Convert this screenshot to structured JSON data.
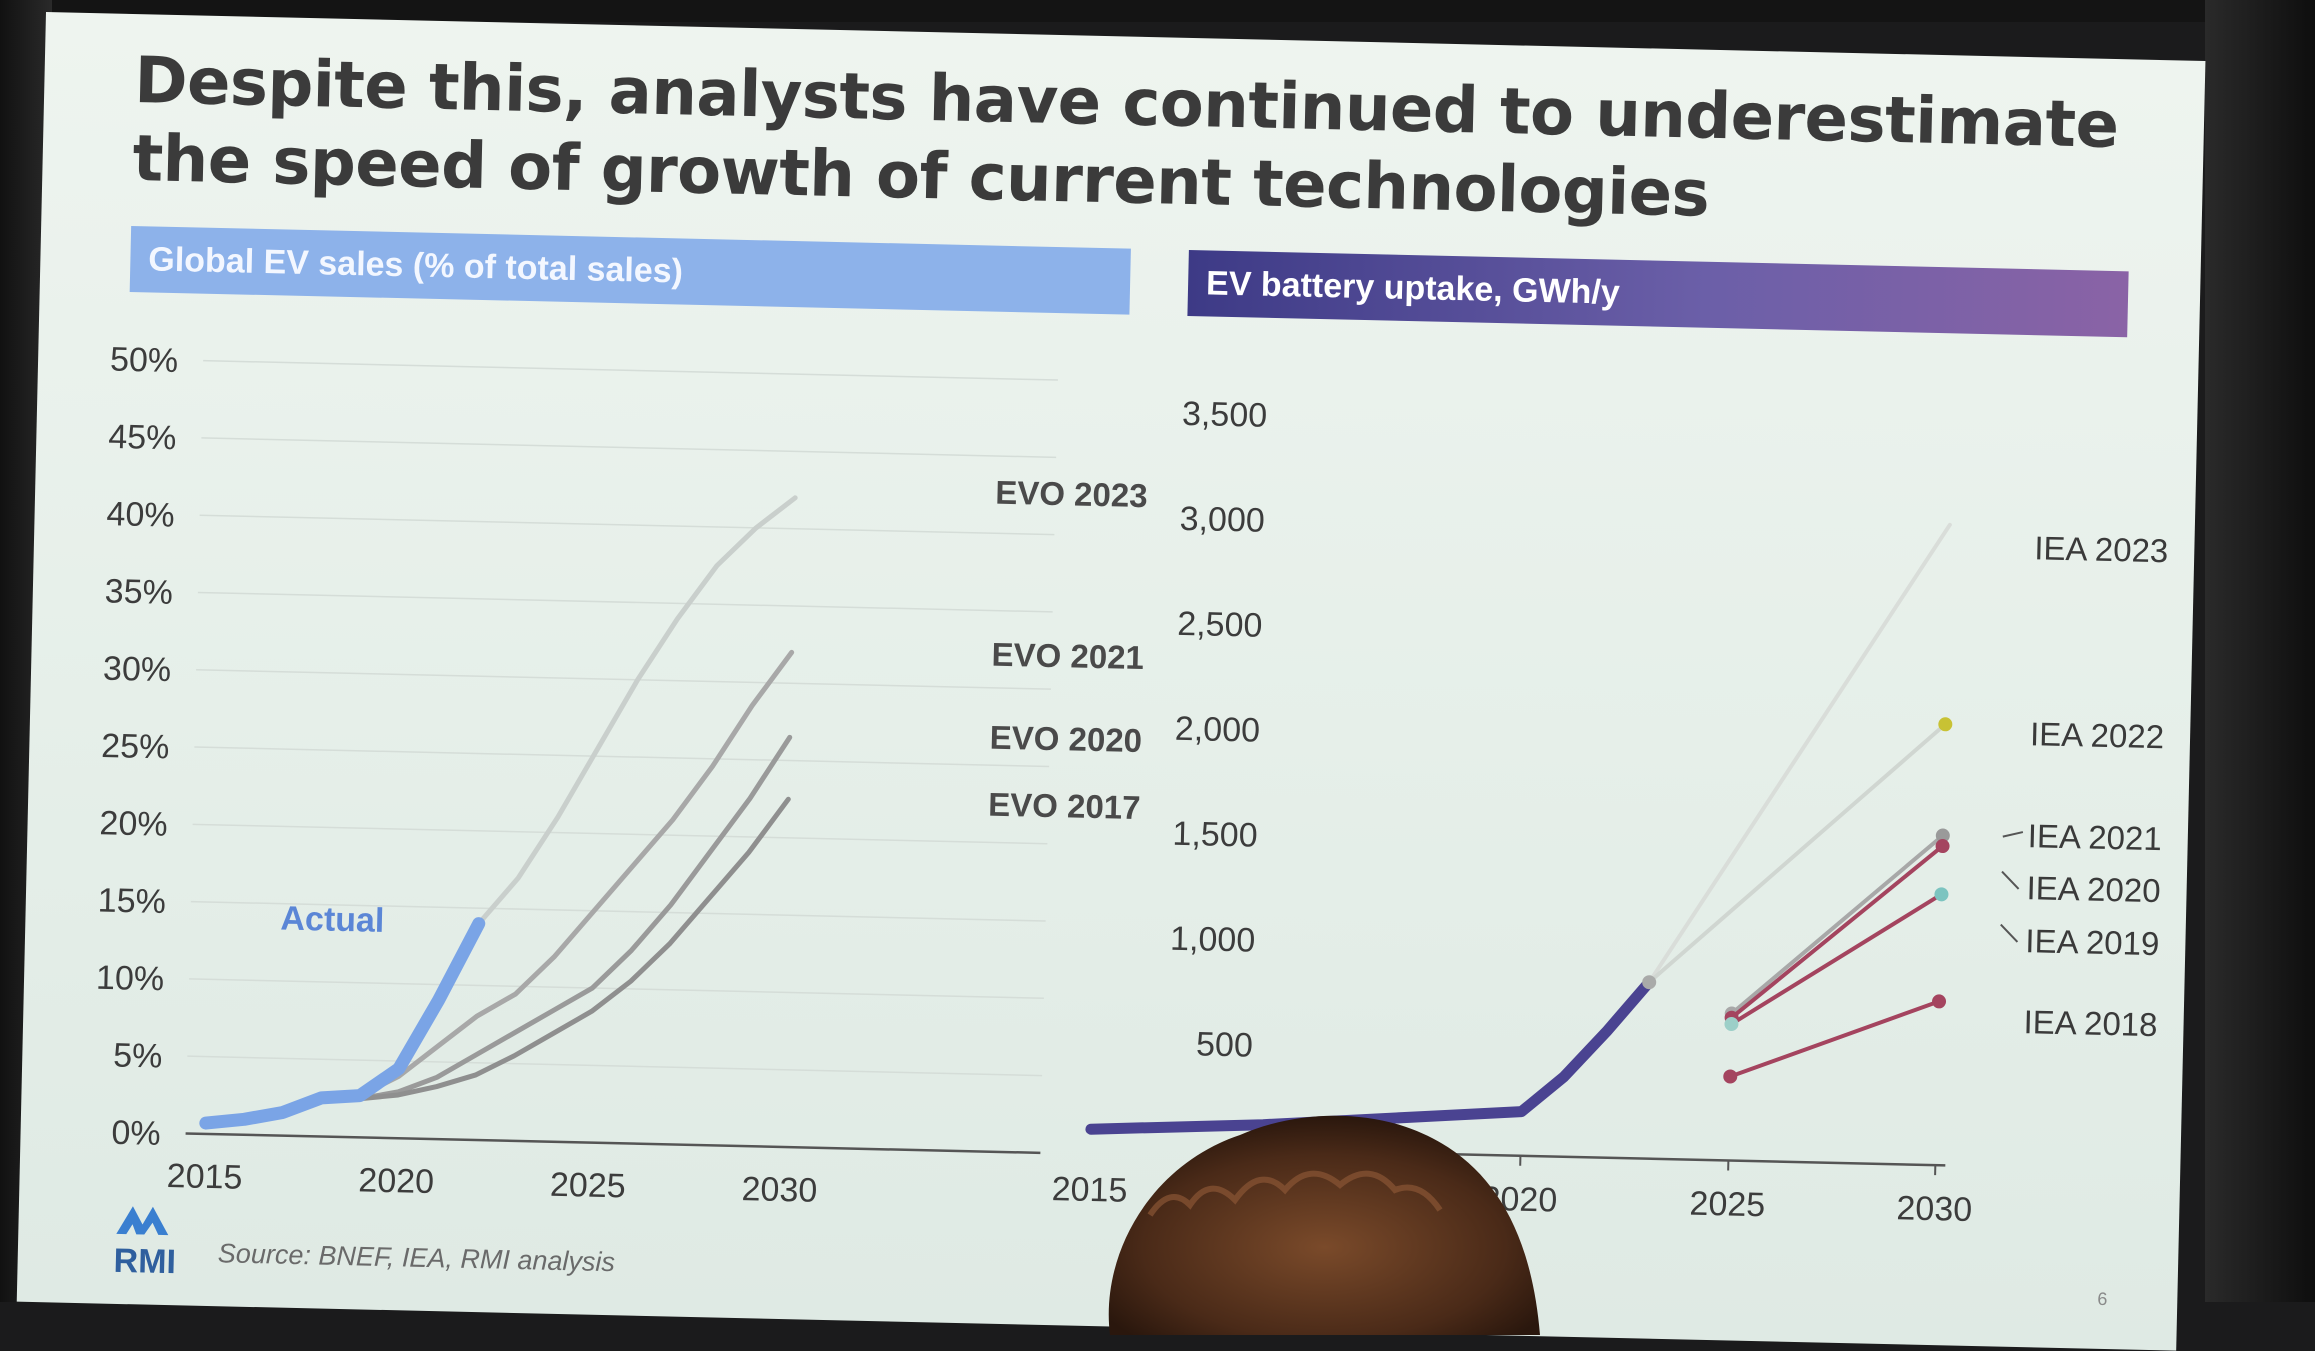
{
  "slide": {
    "title": "Despite this, analysts have continued to underestimate the speed of growth of current technologies",
    "footer": {
      "logo_text": "RMI",
      "source": "Source: BNEF, IEA, RMI analysis",
      "page_number": "6"
    }
  },
  "colors": {
    "left_header": "#8db2ea",
    "right_header": "#4a4391",
    "actual": "#7aa4e6",
    "battery_actual": "#4a4391",
    "iea_red": "#a4445f",
    "iea_2022_dot": "#c8c234",
    "iea_2019_dot": "#7cc4c0"
  },
  "chart_data": [
    {
      "type": "line",
      "title": "Global EV sales (% of total sales)",
      "xlabel": "",
      "ylabel": "",
      "xlim": [
        2015,
        2030
      ],
      "ylim": [
        0,
        50
      ],
      "x_ticks": [
        "2015",
        "2020",
        "2025",
        "2030"
      ],
      "y_ticks": [
        "0%",
        "5%",
        "10%",
        "15%",
        "20%",
        "25%",
        "30%",
        "35%",
        "40%",
        "45%",
        "50%"
      ],
      "grid": true,
      "series": [
        {
          "name": "Actual",
          "color": "#7aa4e6",
          "x": [
            2015,
            2016,
            2017,
            2018,
            2019,
            2020,
            2021,
            2022
          ],
          "y": [
            0.7,
            1.0,
            1.5,
            2.5,
            2.7,
            4.5,
            9.0,
            14.0
          ]
        },
        {
          "name": "EVO 2023",
          "color": "#c9cfcc",
          "x": [
            2020,
            2021,
            2022,
            2023,
            2024,
            2025,
            2026,
            2027,
            2028,
            2029,
            2030
          ],
          "y": [
            4.5,
            9.0,
            14.0,
            17.0,
            21.0,
            25.5,
            30.0,
            34.0,
            37.5,
            40.0,
            42.0
          ]
        },
        {
          "name": "EVO 2021",
          "color": "#a8a8a8",
          "x": [
            2019,
            2020,
            2021,
            2022,
            2023,
            2024,
            2025,
            2026,
            2027,
            2028,
            2029,
            2030
          ],
          "y": [
            2.7,
            4.0,
            6.0,
            8.0,
            9.5,
            12.0,
            15.0,
            18.0,
            21.0,
            24.5,
            28.5,
            32.0
          ]
        },
        {
          "name": "EVO 2020",
          "color": "#9a9a9a",
          "x": [
            2019,
            2020,
            2021,
            2022,
            2023,
            2024,
            2025,
            2026,
            2027,
            2028,
            2029,
            2030
          ],
          "y": [
            2.5,
            3.0,
            4.0,
            5.5,
            7.0,
            8.5,
            10.0,
            12.5,
            15.5,
            19.0,
            22.5,
            26.5
          ]
        },
        {
          "name": "EVO 2017",
          "color": "#8f8f8f",
          "x": [
            2019,
            2020,
            2021,
            2022,
            2023,
            2024,
            2025,
            2026,
            2027,
            2028,
            2029,
            2030
          ],
          "y": [
            2.5,
            2.8,
            3.4,
            4.2,
            5.5,
            7.0,
            8.5,
            10.5,
            13.0,
            16.0,
            19.0,
            22.5
          ]
        }
      ]
    },
    {
      "type": "line",
      "title": "EV battery uptake, GWh/y",
      "xlabel": "",
      "ylabel": "",
      "xlim": [
        2015,
        2030
      ],
      "ylim": [
        0,
        3500
      ],
      "x_ticks": [
        "2015",
        "2020",
        "2025",
        "2030"
      ],
      "y_ticks": [
        "500",
        "1,000",
        "1,500",
        "2,000",
        "2,500",
        "3,000",
        "3,500"
      ],
      "grid": false,
      "legend_entries": [
        "IEA 2023",
        "IEA 2022",
        "IEA 2021",
        "IEA 2020",
        "IEA 2019",
        "IEA 2018"
      ],
      "series": [
        {
          "name": "",
          "color": "#4a4391",
          "x": [
            2015,
            2016,
            2017,
            2018,
            2019,
            2020,
            2021,
            2022,
            2023
          ],
          "y": [
            80,
            100,
            120,
            150,
            180,
            210,
            380,
            600,
            840
          ]
        },
        {
          "name": "IEA 2023",
          "color": "#d9ddd9",
          "x": [
            2023,
            2030
          ],
          "y": [
            840,
            3050
          ]
        },
        {
          "name": "IEA 2022",
          "color": "#d0d6d1",
          "x": [
            2023,
            2030
          ],
          "y": [
            840,
            2100
          ]
        },
        {
          "name": "IEA 2021",
          "color": "#a8a8a8",
          "x": [
            2025,
            2030
          ],
          "y": [
            700,
            1570
          ]
        },
        {
          "name": "IEA 2020",
          "color": "#a4445f",
          "x": [
            2025,
            2030
          ],
          "y": [
            680,
            1520
          ]
        },
        {
          "name": "IEA 2019",
          "color": "#a4445f",
          "x": [
            2025,
            2030
          ],
          "y": [
            650,
            1290
          ]
        },
        {
          "name": "IEA 2018",
          "color": "#a4445f",
          "x": [
            2025,
            2030
          ],
          "y": [
            400,
            780
          ]
        }
      ]
    }
  ]
}
